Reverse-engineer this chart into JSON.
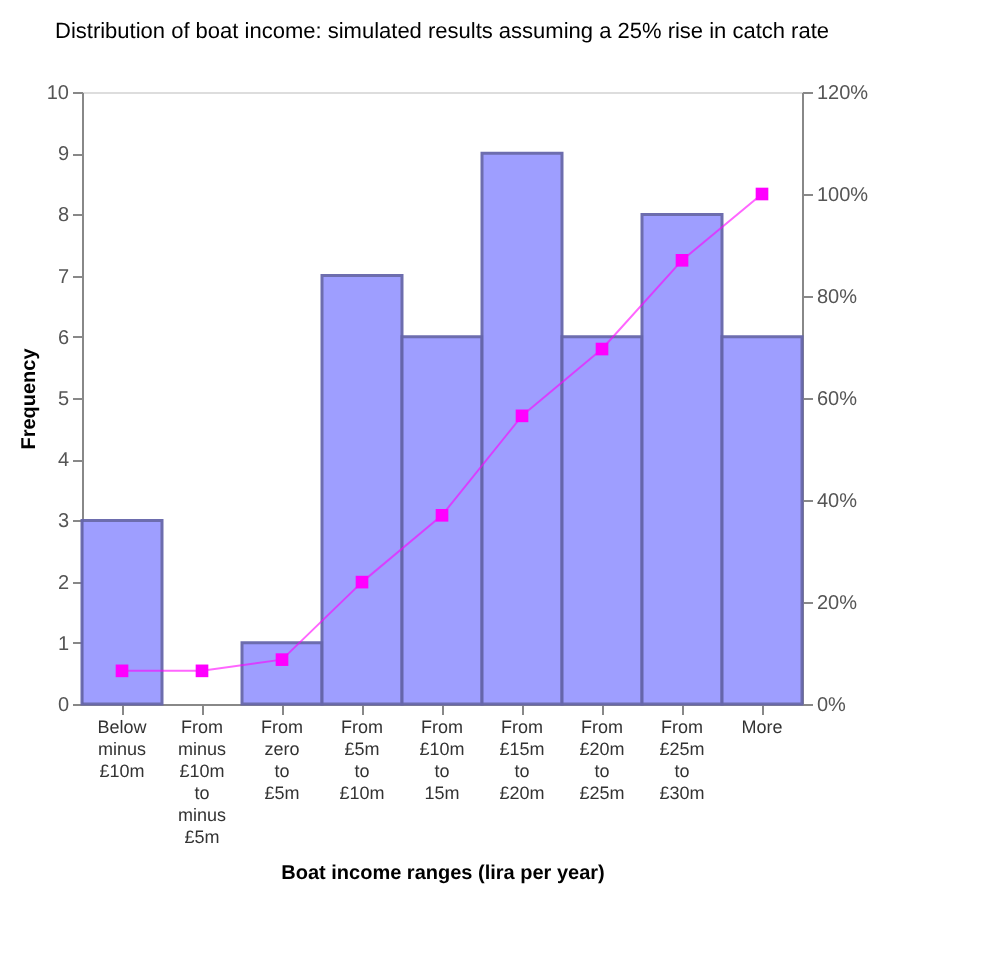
{
  "chart_data": {
    "type": "bar",
    "title": "Distribution of boat income: simulated results assuming a 25% rise in catch rate",
    "xlabel": "Boat income ranges (lira per year)",
    "ylabel": "Frequency",
    "categories": [
      "Below minus £10m",
      "From minus £10m to minus £5m",
      "From zero to £5m",
      "From £5m to £10m",
      "From £10m to 15m",
      "From £15m to £20m",
      "From £20m to £25m",
      "From £25m to £30m",
      "More"
    ],
    "series": [
      {
        "color": "#9999ff",
        "values": [
          3,
          0,
          1,
          7,
          6,
          9,
          6,
          8,
          6
        ]
      },
      {
        "type": "line",
        "axis": "y2",
        "color": "#ff00ff",
        "marker": "square",
        "values": [
          6.5,
          6.5,
          8.7,
          23.9,
          37.0,
          56.5,
          69.6,
          87.0,
          100
        ]
      }
    ],
    "ylim": [
      0,
      10
    ],
    "yticks": [
      0,
      1,
      2,
      3,
      4,
      5,
      6,
      7,
      8,
      9,
      10
    ],
    "y2lim": [
      0,
      120
    ],
    "y2ticks": [
      {
        "value": 0,
        "label": "0%"
      },
      {
        "value": 20,
        "label": "20%"
      },
      {
        "value": 40,
        "label": "40%"
      },
      {
        "value": 60,
        "label": "60%"
      },
      {
        "value": 80,
        "label": "80%"
      },
      {
        "value": 100,
        "label": "100%"
      },
      {
        "value": 120,
        "label": "120%"
      }
    ],
    "grid": false
  }
}
